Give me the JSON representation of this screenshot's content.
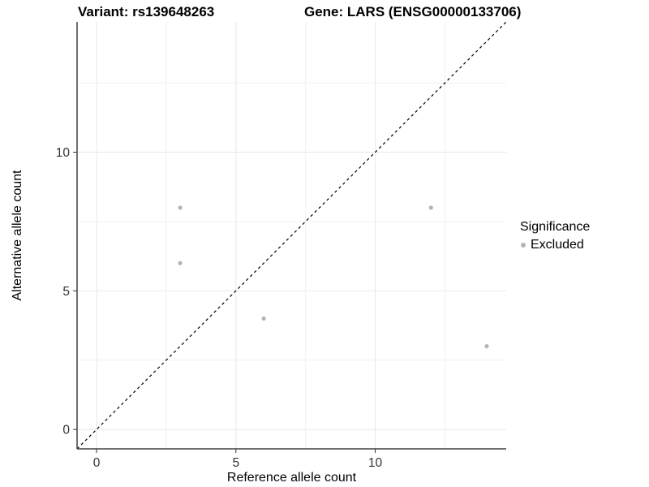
{
  "header": {
    "variant_title": "Variant: rs139648263",
    "gene_title": "Gene: LARS (ENSG00000133706)"
  },
  "chart_data": {
    "type": "scatter",
    "xlabel": "Reference allele count",
    "ylabel": "Alternative allele count",
    "xlim": [
      -0.7,
      14.7
    ],
    "ylim": [
      -0.7,
      14.7
    ],
    "x_major_ticks": [
      0,
      5,
      10
    ],
    "y_major_ticks": [
      0,
      5,
      10
    ],
    "x_minor_ticks": [
      2.5,
      7.5,
      12.5
    ],
    "y_minor_ticks": [
      2.5,
      7.5,
      12.5
    ],
    "grid": true,
    "series": [
      {
        "name": "Excluded",
        "color": "#b4b4b4",
        "points": [
          [
            3,
            8
          ],
          [
            3,
            6
          ],
          [
            6,
            4
          ],
          [
            12,
            8
          ],
          [
            14,
            3
          ]
        ]
      }
    ],
    "reference_line": {
      "type": "identity",
      "from": [
        -0.7,
        -0.7
      ],
      "to": [
        14.7,
        14.7
      ],
      "style": "dashed",
      "color": "#000000"
    },
    "legend": {
      "title": "Significance",
      "position": "right",
      "items": [
        {
          "label": "Excluded",
          "color": "#b4b4b4"
        }
      ]
    }
  },
  "colors": {
    "background": "#ffffff",
    "grid_major": "#e8e8e8",
    "grid_minor": "#f1f1f1",
    "axis_line": "#404040",
    "tick_mark": "#333333",
    "tick_label": "#333333",
    "point": "#b4b4b4"
  }
}
